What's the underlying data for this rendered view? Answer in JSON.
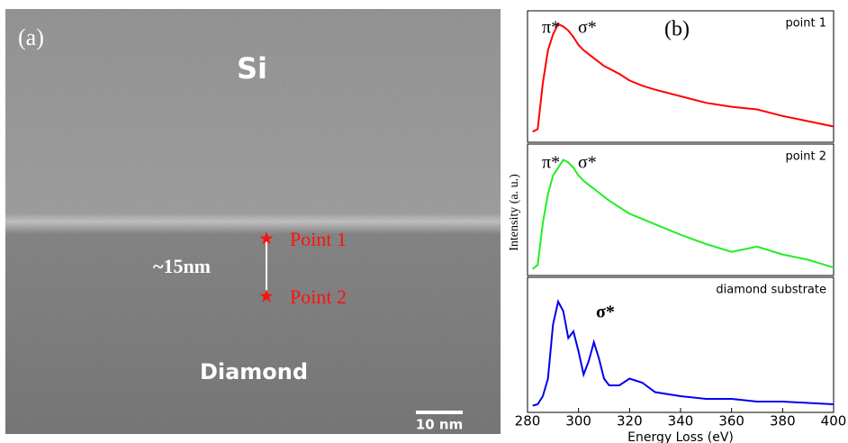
{
  "image": {
    "panel_label": "(a)",
    "top_label": "Si",
    "bottom_label": "Diamond",
    "thickness": "~15nm",
    "points": [
      "Point 1",
      "Point 2"
    ],
    "scale_bar": "10 nm"
  },
  "panel_label": "(b)",
  "chart_data": [
    {
      "type": "line",
      "label": "point 1",
      "annotations": [
        "π*",
        "σ*"
      ],
      "color": "#ff0000",
      "x": [
        282,
        284,
        286,
        288,
        290,
        292,
        294,
        296,
        298,
        300,
        302,
        304,
        306,
        308,
        310,
        312,
        316,
        320,
        325,
        330,
        340,
        350,
        360,
        370,
        380,
        390,
        400
      ],
      "values": [
        0.08,
        0.1,
        0.45,
        0.7,
        0.82,
        0.9,
        0.88,
        0.85,
        0.8,
        0.74,
        0.7,
        0.67,
        0.64,
        0.61,
        0.58,
        0.56,
        0.52,
        0.47,
        0.43,
        0.4,
        0.35,
        0.3,
        0.27,
        0.25,
        0.2,
        0.16,
        0.12
      ],
      "xlim": [
        280,
        400
      ],
      "ylim": [
        0,
        1
      ]
    },
    {
      "type": "line",
      "label": "point 2",
      "annotations": [
        "π*",
        "σ*"
      ],
      "color": "#22ee22",
      "ylabel": "Intensity (a. u.)",
      "x": [
        282,
        284,
        286,
        288,
        290,
        292,
        294,
        296,
        298,
        300,
        302,
        304,
        306,
        308,
        310,
        312,
        316,
        320,
        325,
        330,
        340,
        350,
        360,
        370,
        380,
        390,
        400
      ],
      "values": [
        0.05,
        0.08,
        0.4,
        0.62,
        0.76,
        0.82,
        0.88,
        0.86,
        0.82,
        0.76,
        0.72,
        0.69,
        0.66,
        0.63,
        0.6,
        0.57,
        0.52,
        0.47,
        0.43,
        0.39,
        0.31,
        0.24,
        0.18,
        0.22,
        0.16,
        0.12,
        0.06
      ],
      "xlim": [
        280,
        400
      ],
      "ylim": [
        0,
        1
      ]
    },
    {
      "type": "line",
      "label": "diamond substrate",
      "annotations": [
        "σ*"
      ],
      "color": "#0000ee",
      "xlabel": "Energy Loss (eV)",
      "x": [
        282,
        284,
        286,
        288,
        290,
        292,
        294,
        296,
        298,
        300,
        302,
        304,
        306,
        308,
        310,
        312,
        316,
        320,
        325,
        330,
        340,
        350,
        360,
        370,
        380,
        390,
        400
      ],
      "values": [
        0.05,
        0.06,
        0.12,
        0.25,
        0.65,
        0.82,
        0.75,
        0.55,
        0.6,
        0.45,
        0.28,
        0.38,
        0.52,
        0.4,
        0.25,
        0.2,
        0.2,
        0.25,
        0.22,
        0.15,
        0.12,
        0.1,
        0.1,
        0.08,
        0.08,
        0.07,
        0.06
      ],
      "xlim": [
        280,
        400
      ],
      "ylim": [
        0,
        1
      ],
      "xticks": [
        280,
        300,
        320,
        340,
        360,
        380,
        400
      ]
    }
  ]
}
